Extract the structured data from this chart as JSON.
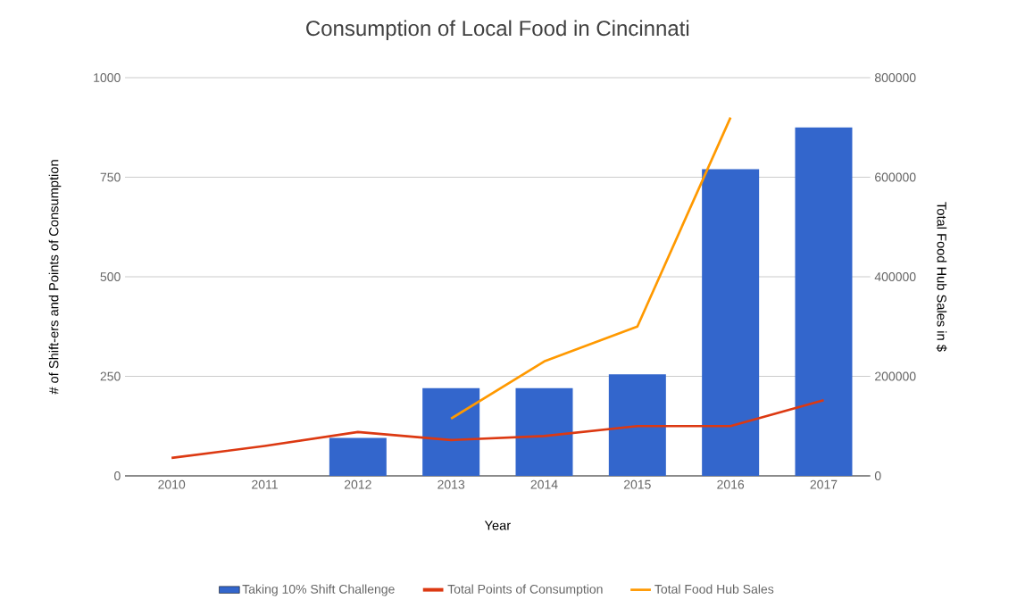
{
  "chart_data": {
    "type": "bar",
    "title": "Consumption of Local Food in Cincinnati",
    "xlabel": "Year",
    "ylabel": "# of Shift-ers  and Points of Consumption",
    "y2label": "Total Food Hub Sales in $",
    "categories": [
      "2010",
      "2011",
      "2012",
      "2013",
      "2014",
      "2015",
      "2016",
      "2017"
    ],
    "series": [
      {
        "name": "Taking 10% Shift Challenge",
        "color": "#3366cc",
        "values": [
          null,
          null,
          95,
          220,
          220,
          255,
          770,
          875
        ]
      },
      {
        "name": "Total Points of Consumption",
        "type": "line",
        "color": "#dc3912",
        "values": [
          45,
          75,
          110,
          90,
          100,
          125,
          125,
          190
        ]
      },
      {
        "name": "Total Food Hub Sales",
        "type": "line",
        "axis": "y2",
        "color": "#ff9900",
        "values": [
          null,
          null,
          null,
          115000,
          230000,
          300000,
          720000,
          null
        ]
      }
    ],
    "ylim": [
      0,
      1000
    ],
    "yticks": [
      0,
      250,
      500,
      750,
      1000
    ],
    "y2lim": [
      0,
      800000
    ],
    "y2ticks": [
      0,
      200000,
      400000,
      600000,
      800000
    ],
    "grid": "y",
    "legend": "bottom"
  }
}
